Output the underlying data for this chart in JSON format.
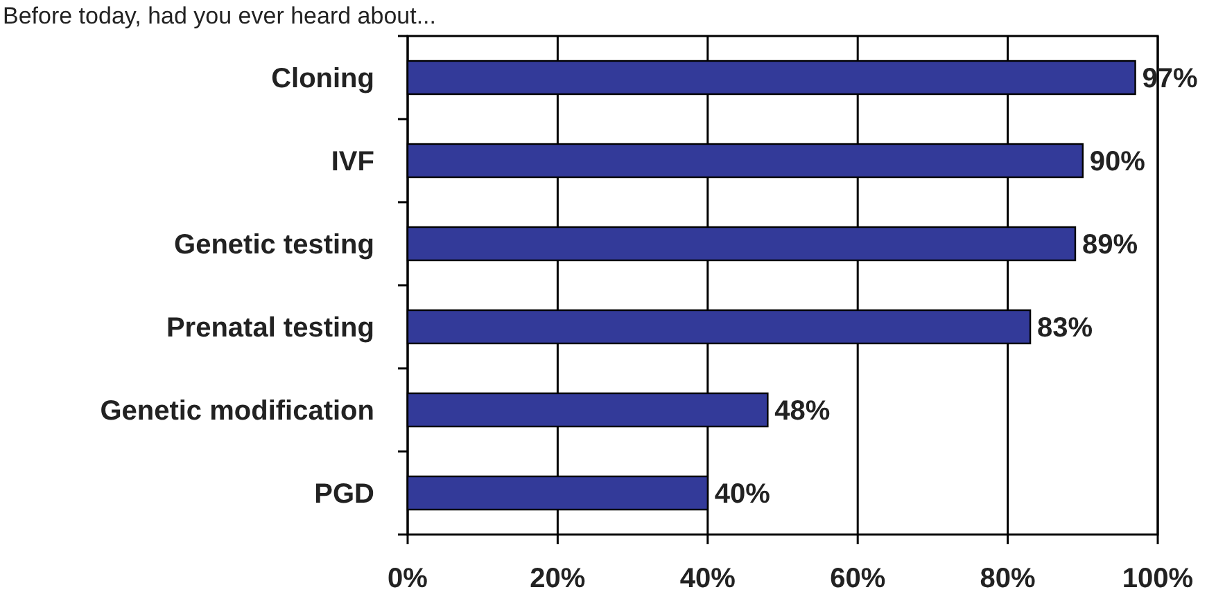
{
  "chart_data": {
    "type": "bar",
    "orientation": "horizontal",
    "title": "Before today, had you ever heard about...",
    "categories": [
      "Cloning",
      "IVF",
      "Genetic testing",
      "Prenatal testing",
      "Genetic modification",
      "PGD"
    ],
    "values": [
      97,
      90,
      89,
      83,
      48,
      40
    ],
    "value_labels": [
      "97%",
      "90%",
      "89%",
      "83%",
      "48%",
      "40%"
    ],
    "color": "#333a99",
    "xlim": [
      0,
      100
    ],
    "xticks": [
      {
        "value": 0,
        "label": "0%"
      },
      {
        "value": 20,
        "label": "20%"
      },
      {
        "value": 40,
        "label": "40%"
      },
      {
        "value": 60,
        "label": "60%"
      },
      {
        "value": 80,
        "label": "80%"
      },
      {
        "value": 100,
        "label": "100%"
      }
    ],
    "grid": "x"
  }
}
